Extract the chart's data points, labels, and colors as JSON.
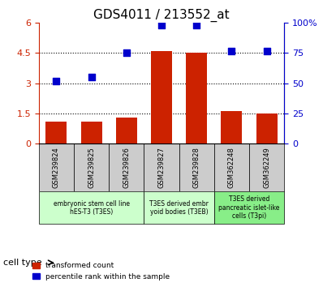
{
  "title": "GDS4011 / 213552_at",
  "samples": [
    "GSM239824",
    "GSM239825",
    "GSM239826",
    "GSM239827",
    "GSM239828",
    "GSM362248",
    "GSM362249"
  ],
  "red_values": [
    1.1,
    1.1,
    1.3,
    4.6,
    4.5,
    1.6,
    1.5
  ],
  "blue_values": [
    52,
    55,
    75,
    98,
    98,
    77,
    77
  ],
  "ylim_left": [
    0,
    6
  ],
  "ylim_right": [
    0,
    100
  ],
  "yticks_left": [
    0,
    1.5,
    3,
    4.5,
    6
  ],
  "ytick_labels_left": [
    "0",
    "1.5",
    "3",
    "4.5",
    "6"
  ],
  "yticks_right": [
    0,
    25,
    50,
    75,
    100
  ],
  "ytick_labels_right": [
    "0",
    "25",
    "50",
    "75",
    "100%"
  ],
  "bar_color": "#cc2200",
  "dot_color": "#0000cc",
  "cell_groups": [
    {
      "label": "embryonic stem cell line\nhES-T3 (T3ES)",
      "start": 0,
      "end": 3,
      "color": "#ccffcc"
    },
    {
      "label": "T3ES derived embr\nyoid bodies (T3EB)",
      "start": 3,
      "end": 5,
      "color": "#ccffcc"
    },
    {
      "label": "T3ES derived\npancreatic islet-like\ncells (T3pi)",
      "start": 5,
      "end": 7,
      "color": "#88ee88"
    }
  ],
  "cell_type_label": "cell type",
  "legend_red": "transformed count",
  "legend_blue": "percentile rank within the sample",
  "tick_area_bg": "#cccccc",
  "grid_color": "#000000",
  "grid_alpha": 0.3,
  "bar_width": 0.6
}
